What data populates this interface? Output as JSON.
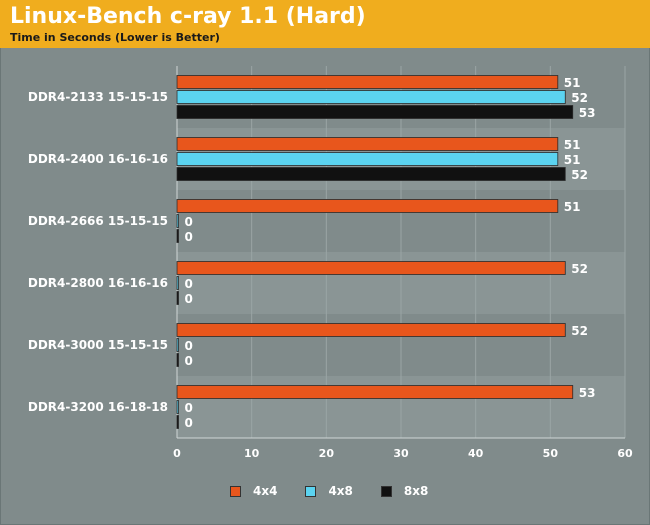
{
  "chart_data": {
    "type": "bar",
    "orientation": "horizontal",
    "title": "Linux-Bench c-ray 1.1 (Hard)",
    "subtitle": "Time in Seconds (Lower is Better)",
    "categories": [
      "DDR4-2133 15-15-15",
      "DDR4-2400 16-16-16",
      "DDR4-2666 15-15-15",
      "DDR4-2800 16-16-16",
      "DDR4-3000 15-15-15",
      "DDR4-3200 16-18-18"
    ],
    "series": [
      {
        "name": "4x4",
        "color": "#e8561c",
        "values": [
          51,
          51,
          51,
          52,
          52,
          53
        ]
      },
      {
        "name": "4x8",
        "color": "#5bd3f0",
        "values": [
          52,
          51,
          0,
          0,
          0,
          0
        ]
      },
      {
        "name": "8x8",
        "color": "#111111",
        "values": [
          53,
          52,
          0,
          0,
          0,
          0
        ]
      }
    ],
    "xlim": [
      0,
      60
    ],
    "xticks": [
      0,
      10,
      20,
      30,
      40,
      50,
      60
    ],
    "grid": true,
    "legend_position": "bottom"
  },
  "colors": {
    "header": "#f0ad1e",
    "background": "#808b8b",
    "band_alt": "#8a9595",
    "grid": "#9aa5a5"
  }
}
